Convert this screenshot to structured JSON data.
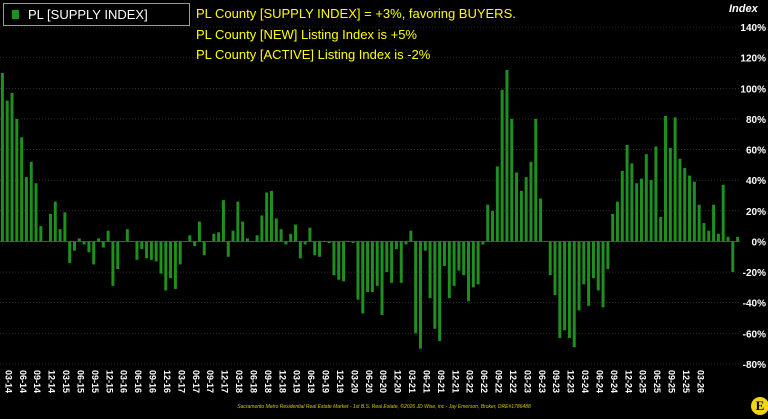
{
  "legend": {
    "label": "PL [SUPPLY INDEX]"
  },
  "annotations": [
    "PL County [SUPPLY INDEX] = +3%, favoring BUYERS.",
    "PL County [NEW] Listing Index is +5%",
    "PL County [ACTIVE] Listing Index is -2%"
  ],
  "footer": "Sacramento Metro Residential Real Estate Market - 1st B.S. Real Estate, ©2026 JD Wise, inc - Jay Emerson, Broker, DRE#1786488",
  "logo_letter": "E",
  "colors": {
    "bar": "#1f8f1f",
    "background": "#000000",
    "annotation": "#ffff00",
    "grid": "#4a4a4a"
  },
  "chart_data": {
    "type": "bar",
    "title": "",
    "xlabel": "",
    "ylabel": "Index",
    "ylim": [
      -80,
      140
    ],
    "yticks": [
      140,
      120,
      100,
      80,
      60,
      40,
      20,
      0,
      -20,
      -40,
      -60,
      -80
    ],
    "ytick_labels": [
      "140%",
      "120%",
      "100%",
      "80%",
      "60%",
      "40%",
      "20%",
      "0%",
      "-20%",
      "-40%",
      "-60%",
      "-80%"
    ],
    "grid": true,
    "legend_position": "top-left",
    "series": [
      {
        "name": "PL [SUPPLY INDEX]",
        "values": [
          110,
          92,
          97,
          80,
          68,
          42,
          52,
          38,
          10,
          0,
          18,
          26,
          8,
          19,
          -14,
          -6,
          2,
          -2,
          -7,
          -15,
          2,
          -4,
          7,
          -29,
          -18,
          0,
          8,
          0,
          -12,
          -5,
          -11,
          -12,
          -13,
          -21,
          -32,
          -24,
          -31,
          -15,
          0,
          4,
          -3,
          13,
          -9,
          0,
          5,
          6,
          27,
          -10,
          7,
          26,
          13,
          2,
          0,
          4,
          17,
          32,
          33,
          15,
          8,
          -2,
          5,
          11,
          -11,
          -2,
          9,
          -9,
          -10,
          0,
          -1,
          -22,
          -25,
          -26,
          0,
          -1,
          -38,
          -47,
          -33,
          -33,
          -29,
          -48,
          -20,
          -27,
          -5,
          -27,
          -2,
          7,
          -60,
          -70,
          -6,
          -37,
          -57,
          -65,
          -16,
          -37,
          -29,
          -19,
          -22,
          -39,
          -30,
          -28,
          -2,
          24,
          20,
          49,
          99,
          112,
          80,
          45,
          33,
          42,
          52,
          80,
          28,
          0,
          -22,
          -35,
          -63,
          -58,
          -63,
          -69,
          -45,
          -28,
          -42,
          -24,
          -32,
          -43,
          -18,
          18,
          26,
          46,
          63,
          51,
          38,
          41,
          57,
          40,
          62,
          16,
          82,
          61,
          81,
          54,
          48,
          43,
          39,
          24,
          12,
          7,
          24,
          5,
          37,
          3,
          -20,
          3
        ]
      }
    ],
    "x_tick_labels": [
      "03-14",
      "06-14",
      "09-14",
      "12-14",
      "03-15",
      "06-15",
      "09-15",
      "12-15",
      "03-16",
      "06-16",
      "09-16",
      "12-16",
      "03-17",
      "06-17",
      "09-17",
      "12-17",
      "03-18",
      "06-18",
      "09-18",
      "12-18",
      "03-19",
      "06-19",
      "09-19",
      "12-19",
      "03-20",
      "06-20",
      "09-20",
      "12-20",
      "03-21",
      "06-21",
      "09-21",
      "12-21",
      "03-22",
      "06-22",
      "09-22",
      "12-22",
      "03-23",
      "06-23",
      "09-23",
      "12-23",
      "03-24",
      "06-24",
      "09-24",
      "12-24",
      "03-25",
      "06-25",
      "09-25",
      "12-25",
      "03-26"
    ],
    "x_tick_positions": [
      0,
      3,
      6,
      9,
      12,
      15,
      18,
      21,
      24,
      27,
      30,
      33,
      36,
      39,
      42,
      45,
      48,
      51,
      54,
      57,
      60,
      63,
      66,
      69,
      72,
      75,
      78,
      81,
      84,
      87,
      90,
      93,
      96,
      99,
      102,
      105,
      108,
      111,
      114,
      117,
      120,
      123,
      126,
      129,
      132,
      135,
      138,
      141,
      144
    ]
  }
}
